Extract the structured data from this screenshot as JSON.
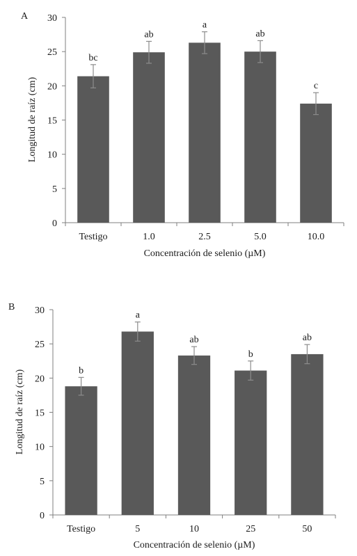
{
  "chart_data": [
    {
      "type": "bar",
      "panel_label": "A",
      "categories": [
        "Testigo",
        "1.0",
        "2.5",
        "5.0",
        "10.0"
      ],
      "values": [
        21.4,
        24.9,
        26.3,
        25.0,
        17.4
      ],
      "errors": [
        1.7,
        1.6,
        1.6,
        1.6,
        1.6
      ],
      "significance_letters": [
        "bc",
        "ab",
        "a",
        "ab",
        "c"
      ],
      "xlabel": "Concentración de selenio (µM)",
      "ylabel": "Longitud de raíz (cm)",
      "ylim": [
        0,
        30
      ],
      "yticks": [
        "0",
        "5",
        "10",
        "15",
        "20",
        "25",
        "30"
      ],
      "bar_color": "#595959",
      "error_color": "#8c8c8c",
      "grid": false,
      "legend": "none"
    },
    {
      "type": "bar",
      "panel_label": "B",
      "categories": [
        "Testigo",
        "5",
        "10",
        "25",
        "50"
      ],
      "values": [
        18.8,
        26.8,
        23.3,
        21.1,
        23.5
      ],
      "errors": [
        1.3,
        1.4,
        1.3,
        1.4,
        1.4
      ],
      "significance_letters": [
        "b",
        "a",
        "ab",
        "b",
        "ab"
      ],
      "xlabel": "Concentración de selenio (µM)",
      "ylabel": "Longitud de raíz (cm)",
      "ylim": [
        0,
        30
      ],
      "yticks": [
        "0",
        "5",
        "10",
        "15",
        "20",
        "25",
        "30"
      ],
      "bar_color": "#595959",
      "error_color": "#8c8c8c",
      "grid": false,
      "legend": "none"
    }
  ]
}
